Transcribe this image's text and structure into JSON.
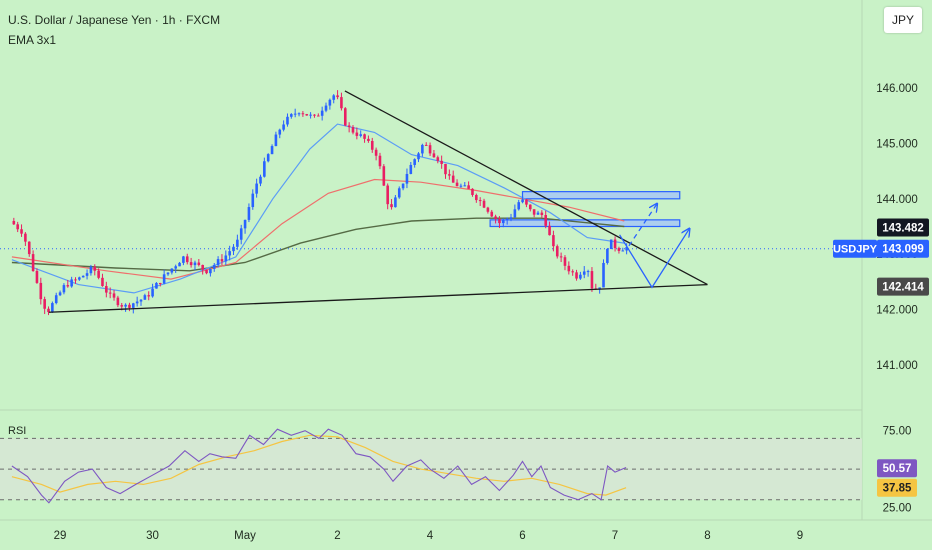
{
  "header": {
    "title": "U.S. Dollar / Japanese Yen · 1h · FXCM",
    "indicator": "EMA 3x1",
    "currency_button": "JPY"
  },
  "colors": {
    "background": "#c9f2c7",
    "up_candle": "#2962ff",
    "down_candle": "#e91e63",
    "ema_fast": "#5b9cf6",
    "ema_mid": "#ef6f6c",
    "ema_slow": "#556b45",
    "rsi_line": "#7e57c2",
    "rsi_ma": "#f5c542",
    "zone_fill": "#a7c8f5",
    "zone_stroke": "#2962ff",
    "trendline": "#1a1a1a"
  },
  "chart_data": [
    {
      "type": "candlestick",
      "symbol_badge": "USDJPY",
      "ylim": [
        140.6,
        146.4
      ],
      "y_ticks": [
        "146.000",
        "145.000",
        "144.000",
        "143.000",
        "142.000",
        "141.000"
      ],
      "x_ticks": [
        "29",
        "30",
        "May",
        "2",
        "4",
        "6",
        "7",
        "8",
        "9"
      ],
      "x_tick_days": [
        0,
        1,
        2,
        3,
        4,
        5,
        6,
        7,
        8
      ],
      "price_labels": [
        {
          "text": "143.482",
          "value": 143.482,
          "bg": "#131722",
          "fg": "#ffffff"
        },
        {
          "text": "143.099",
          "value": 143.099,
          "bg": "#2962ff",
          "fg": "#ffffff"
        },
        {
          "text": "142.414",
          "value": 142.414,
          "bg": "#4a4a4a",
          "fg": "#ffffff"
        }
      ],
      "current_price": 143.099,
      "path": [
        [
          -0.52,
          143.6
        ],
        [
          -0.38,
          143.4
        ],
        [
          -0.2,
          142.3
        ],
        [
          -0.12,
          141.95
        ],
        [
          0.08,
          142.45
        ],
        [
          0.22,
          142.55
        ],
        [
          0.38,
          142.75
        ],
        [
          0.55,
          142.25
        ],
        [
          0.72,
          142.05
        ],
        [
          0.95,
          142.22
        ],
        [
          1.12,
          142.55
        ],
        [
          1.35,
          142.95
        ],
        [
          1.6,
          142.7
        ],
        [
          1.8,
          142.95
        ],
        [
          1.95,
          143.25
        ],
        [
          2.15,
          144.3
        ],
        [
          2.3,
          144.9
        ],
        [
          2.42,
          145.35
        ],
        [
          2.6,
          145.6
        ],
        [
          2.78,
          145.45
        ],
        [
          2.9,
          145.75
        ],
        [
          3.0,
          145.9
        ],
        [
          3.12,
          145.3
        ],
        [
          3.3,
          145.1
        ],
        [
          3.45,
          144.8
        ],
        [
          3.55,
          144.0
        ],
        [
          3.6,
          143.8
        ],
        [
          3.78,
          144.5
        ],
        [
          3.95,
          145.0
        ],
        [
          4.1,
          144.75
        ],
        [
          4.25,
          144.3
        ],
        [
          4.45,
          144.15
        ],
        [
          4.6,
          143.9
        ],
        [
          4.78,
          143.55
        ],
        [
          4.9,
          143.7
        ],
        [
          5.0,
          144.0
        ],
        [
          5.12,
          143.75
        ],
        [
          5.25,
          143.7
        ],
        [
          5.35,
          143.1
        ],
        [
          5.48,
          142.8
        ],
        [
          5.6,
          142.6
        ],
        [
          5.72,
          142.8
        ],
        [
          5.78,
          142.35
        ],
        [
          5.85,
          142.4
        ],
        [
          5.95,
          143.25
        ],
        [
          6.05,
          143.1
        ],
        [
          6.12,
          143.12
        ]
      ],
      "ema_fast": [
        [
          -0.52,
          142.9
        ],
        [
          0.2,
          142.45
        ],
        [
          0.8,
          142.3
        ],
        [
          1.3,
          142.55
        ],
        [
          1.9,
          142.95
        ],
        [
          2.3,
          144.0
        ],
        [
          2.7,
          144.9
        ],
        [
          3.0,
          145.35
        ],
        [
          3.4,
          145.2
        ],
        [
          3.8,
          144.8
        ],
        [
          4.3,
          144.6
        ],
        [
          4.8,
          144.2
        ],
        [
          5.3,
          143.75
        ],
        [
          5.7,
          143.3
        ],
        [
          6.1,
          143.2
        ]
      ],
      "ema_mid": [
        [
          -0.52,
          142.95
        ],
        [
          0.5,
          142.7
        ],
        [
          1.2,
          142.55
        ],
        [
          1.9,
          142.85
        ],
        [
          2.4,
          143.55
        ],
        [
          2.9,
          144.1
        ],
        [
          3.4,
          144.35
        ],
        [
          3.9,
          144.3
        ],
        [
          4.5,
          144.15
        ],
        [
          5.0,
          144.0
        ],
        [
          5.5,
          143.85
        ],
        [
          6.1,
          143.6
        ]
      ],
      "ema_slow": [
        [
          -0.52,
          142.85
        ],
        [
          0.6,
          142.75
        ],
        [
          1.4,
          142.7
        ],
        [
          2.0,
          142.85
        ],
        [
          2.6,
          143.2
        ],
        [
          3.2,
          143.45
        ],
        [
          3.8,
          143.6
        ],
        [
          4.5,
          143.65
        ],
        [
          5.2,
          143.65
        ],
        [
          5.8,
          143.55
        ],
        [
          6.1,
          143.5
        ]
      ],
      "trendlines": [
        {
          "name": "upper-trendline",
          "from": [
            3.08,
            145.95
          ],
          "to": [
            7.0,
            142.45
          ]
        },
        {
          "name": "lower-trendline",
          "from": [
            -0.12,
            141.95
          ],
          "to": [
            7.0,
            142.45
          ]
        }
      ],
      "zones": [
        {
          "name": "upper-zone",
          "x_from": 5.0,
          "x_to": 6.7,
          "y_from": 144.0,
          "y_to": 144.13
        },
        {
          "name": "lower-zone",
          "x_from": 4.65,
          "x_to": 6.7,
          "y_from": 143.5,
          "y_to": 143.62
        }
      ],
      "projections": [
        {
          "name": "projection-dashed",
          "points": [
            [
              6.15,
              143.15
            ],
            [
              6.45,
              143.9
            ]
          ],
          "dashed": true
        },
        {
          "name": "projection-solid",
          "points": [
            [
              6.05,
              143.35
            ],
            [
              6.4,
              142.4
            ],
            [
              6.8,
              143.45
            ]
          ],
          "dashed": false
        }
      ]
    },
    {
      "type": "line",
      "label": "RSI",
      "ylim": [
        22,
        82
      ],
      "y_ticks": [
        "75.00",
        "25.00"
      ],
      "band": [
        30,
        70
      ],
      "midline": 50,
      "value_labels": [
        {
          "text": "50.57",
          "value": 50.57,
          "bg": "#7e57c2",
          "fg": "#ffffff"
        },
        {
          "text": "37.85",
          "value": 37.85,
          "bg": "#f5c542",
          "fg": "#222222"
        }
      ],
      "rsi": [
        [
          -0.52,
          52
        ],
        [
          -0.35,
          45
        ],
        [
          -0.2,
          33
        ],
        [
          -0.12,
          28
        ],
        [
          0.05,
          42
        ],
        [
          0.2,
          48
        ],
        [
          0.35,
          50
        ],
        [
          0.5,
          38
        ],
        [
          0.65,
          34
        ],
        [
          0.82,
          40
        ],
        [
          1.0,
          46
        ],
        [
          1.18,
          52
        ],
        [
          1.35,
          62
        ],
        [
          1.5,
          55
        ],
        [
          1.62,
          60
        ],
        [
          1.75,
          58
        ],
        [
          1.9,
          57
        ],
        [
          2.05,
          72
        ],
        [
          2.2,
          66
        ],
        [
          2.35,
          76
        ],
        [
          2.5,
          72
        ],
        [
          2.65,
          75
        ],
        [
          2.8,
          70
        ],
        [
          2.9,
          76
        ],
        [
          3.05,
          72
        ],
        [
          3.2,
          60
        ],
        [
          3.35,
          58
        ],
        [
          3.5,
          50
        ],
        [
          3.6,
          42
        ],
        [
          3.75,
          52
        ],
        [
          3.9,
          56
        ],
        [
          4.0,
          50
        ],
        [
          4.15,
          44
        ],
        [
          4.3,
          52
        ],
        [
          4.45,
          40
        ],
        [
          4.6,
          45
        ],
        [
          4.75,
          36
        ],
        [
          4.9,
          46
        ],
        [
          5.0,
          55
        ],
        [
          5.1,
          45
        ],
        [
          5.2,
          52
        ],
        [
          5.3,
          38
        ],
        [
          5.45,
          33
        ],
        [
          5.6,
          30
        ],
        [
          5.75,
          34
        ],
        [
          5.85,
          30
        ],
        [
          5.92,
          52
        ],
        [
          6.0,
          48
        ],
        [
          6.12,
          51
        ]
      ],
      "rsi_ma": [
        [
          -0.52,
          45
        ],
        [
          -0.2,
          40
        ],
        [
          0.0,
          35
        ],
        [
          0.3,
          40
        ],
        [
          0.6,
          42
        ],
        [
          0.9,
          40
        ],
        [
          1.2,
          44
        ],
        [
          1.5,
          53
        ],
        [
          1.8,
          58
        ],
        [
          2.1,
          62
        ],
        [
          2.4,
          68
        ],
        [
          2.7,
          72
        ],
        [
          3.0,
          71
        ],
        [
          3.3,
          64
        ],
        [
          3.6,
          55
        ],
        [
          3.9,
          50
        ],
        [
          4.2,
          47
        ],
        [
          4.5,
          44
        ],
        [
          4.8,
          42
        ],
        [
          5.1,
          44
        ],
        [
          5.4,
          40
        ],
        [
          5.7,
          34
        ],
        [
          5.9,
          33
        ],
        [
          6.12,
          37.85
        ]
      ]
    }
  ]
}
